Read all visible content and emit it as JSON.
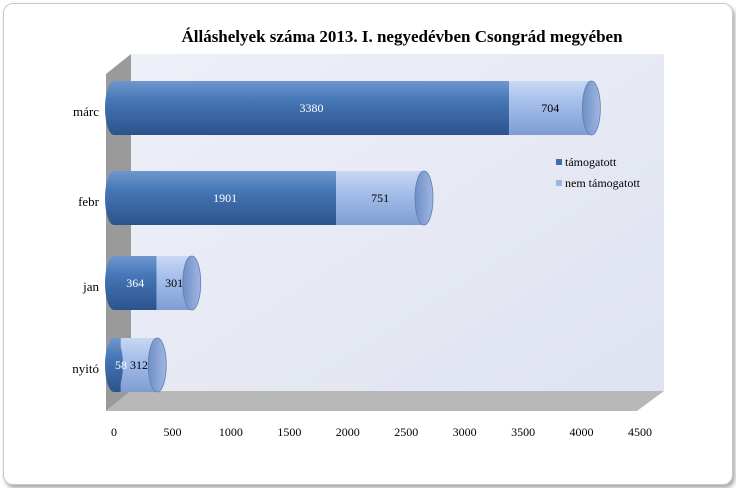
{
  "chart_data": {
    "type": "bar",
    "orientation": "horizontal",
    "stacked": true,
    "style": "3d-cylinder",
    "title": "Álláshelyek száma 2013. I. negyedévben Csongrád megyében",
    "categories": [
      "nyitó",
      "jan",
      "febr",
      "márc"
    ],
    "series": [
      {
        "name": "támogatott",
        "values": [
          58,
          364,
          1901,
          3380
        ],
        "color": "#3e6eab"
      },
      {
        "name": "nem támogatott",
        "values": [
          312,
          301,
          751,
          704
        ],
        "color": "#9bb5e6"
      }
    ],
    "x_ticks": [
      "0",
      "500",
      "1000",
      "1500",
      "2000",
      "2500",
      "3000",
      "3500",
      "4000",
      "4500"
    ],
    "xlim": [
      0,
      4500
    ],
    "legend_position": "right",
    "grid": false,
    "colors": {
      "wall": "#e6e9f4",
      "floor": "#b7b7b7",
      "side_wall": "#9a9a9a"
    }
  }
}
